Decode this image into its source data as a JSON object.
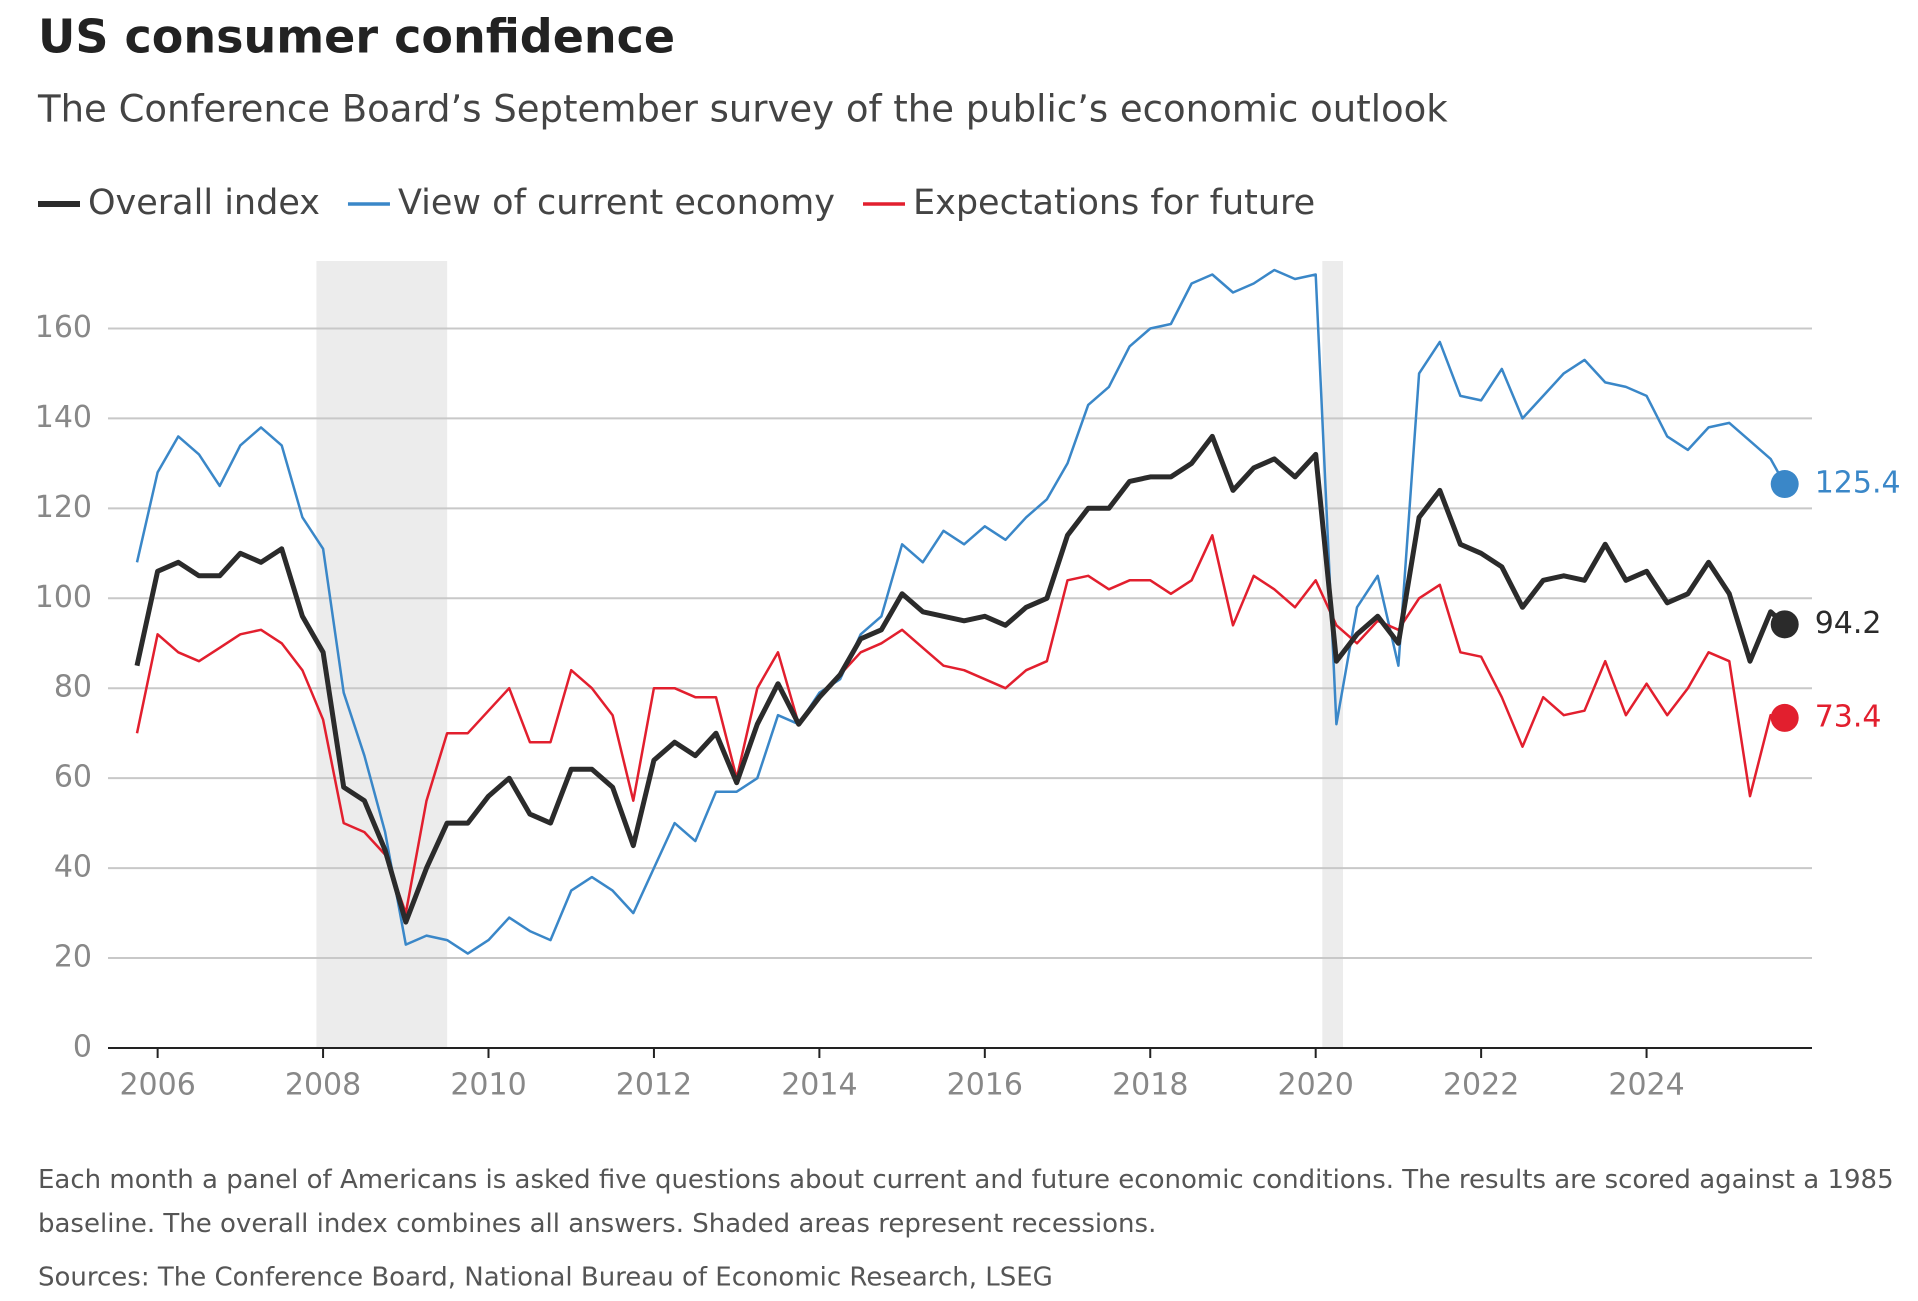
{
  "chart_data": {
    "type": "line",
    "title": "US consumer confidence",
    "subtitle": "The Conference Board’s September survey of the public’s economic outlook",
    "note": "Each month a panel of Americans is asked five questions about current and future economic conditions. The results are scored against a 1985 baseline. The overall index combines all answers. Shaded areas represent recessions.",
    "source": "Sources: The Conference Board, National Bureau of Economic Research, LSEG",
    "x": [
      2005.75,
      2006,
      2006.25,
      2006.5,
      2006.75,
      2007,
      2007.25,
      2007.5,
      2007.75,
      2008,
      2008.25,
      2008.5,
      2008.75,
      2009,
      2009.25,
      2009.5,
      2009.75,
      2010,
      2010.25,
      2010.5,
      2010.75,
      2011,
      2011.25,
      2011.5,
      2011.75,
      2012,
      2012.25,
      2012.5,
      2012.75,
      2013,
      2013.25,
      2013.5,
      2013.75,
      2014,
      2014.25,
      2014.5,
      2014.75,
      2015,
      2015.25,
      2015.5,
      2015.75,
      2016,
      2016.25,
      2016.5,
      2016.75,
      2017,
      2017.25,
      2017.5,
      2017.75,
      2018,
      2018.25,
      2018.5,
      2018.75,
      2019,
      2019.25,
      2019.5,
      2019.75,
      2020,
      2020.25,
      2020.5,
      2020.75,
      2021,
      2021.25,
      2021.5,
      2021.75,
      2022,
      2022.25,
      2022.5,
      2022.75,
      2023,
      2023.25,
      2023.5,
      2023.75,
      2024,
      2024.25,
      2024.5,
      2024.75,
      2025,
      2025.25,
      2025.5,
      2025.67
    ],
    "series": [
      {
        "name": "View of current economy",
        "color": "#3a87c8",
        "width": 2.5,
        "values": [
          108,
          128,
          136,
          132,
          125,
          134,
          138,
          134,
          118,
          111,
          79,
          65,
          48,
          23,
          25,
          24,
          21,
          24,
          29,
          26,
          24,
          35,
          38,
          35,
          30,
          40,
          50,
          46,
          57,
          57,
          60,
          74,
          72,
          79,
          82,
          92,
          96,
          112,
          108,
          115,
          112,
          116,
          113,
          118,
          122,
          130,
          143,
          147,
          156,
          160,
          161,
          170,
          172,
          168,
          170,
          173,
          171,
          172,
          72,
          98,
          105,
          85,
          150,
          157,
          145,
          144,
          151,
          140,
          145,
          150,
          153,
          148,
          147,
          145,
          136,
          133,
          138,
          139,
          135,
          131,
          125.4
        ]
      },
      {
        "name": "Expectations for future",
        "color": "#e21f2e",
        "width": 2.5,
        "values": [
          70,
          92,
          88,
          86,
          89,
          92,
          93,
          90,
          84,
          73,
          50,
          48,
          43,
          30,
          55,
          70,
          70,
          75,
          80,
          68,
          68,
          84,
          80,
          74,
          55,
          80,
          80,
          78,
          78,
          60,
          80,
          88,
          72,
          78,
          83,
          88,
          90,
          93,
          89,
          85,
          84,
          82,
          80,
          84,
          86,
          104,
          105,
          102,
          104,
          104,
          101,
          104,
          114,
          94,
          105,
          102,
          98,
          104,
          94,
          90,
          95,
          93,
          100,
          103,
          88,
          87,
          78,
          67,
          78,
          74,
          75,
          86,
          74,
          81,
          74,
          80,
          88,
          86,
          56,
          74,
          73.4
        ]
      },
      {
        "name": "Overall index",
        "color": "#2b2b2b",
        "width": 5,
        "values": [
          85,
          106,
          108,
          105,
          105,
          110,
          108,
          111,
          96,
          88,
          58,
          55,
          44,
          28,
          40,
          50,
          50,
          56,
          60,
          52,
          50,
          62,
          62,
          58,
          45,
          64,
          68,
          65,
          70,
          59,
          72,
          81,
          72,
          78,
          83,
          91,
          93,
          101,
          97,
          96,
          95,
          96,
          94,
          98,
          100,
          114,
          120,
          120,
          126,
          127,
          127,
          130,
          136,
          124,
          129,
          131,
          127,
          132,
          86,
          92,
          96,
          90,
          118,
          124,
          112,
          110,
          107,
          98,
          104,
          105,
          104,
          112,
          104,
          106,
          99,
          101,
          108,
          101,
          86,
          97,
          94.2
        ]
      }
    ],
    "legend_order": [
      2,
      0,
      1
    ],
    "recessions": [
      [
        2007.92,
        2009.5
      ],
      [
        2020.08,
        2020.33
      ]
    ],
    "xlim": [
      2005.4,
      2026
    ],
    "ylim": [
      0,
      175
    ],
    "xticks": [
      2006,
      2008,
      2010,
      2012,
      2014,
      2016,
      2018,
      2020,
      2022,
      2024
    ],
    "yticks": [
      0,
      20,
      40,
      60,
      80,
      100,
      120,
      140,
      160
    ],
    "grid": true
  }
}
